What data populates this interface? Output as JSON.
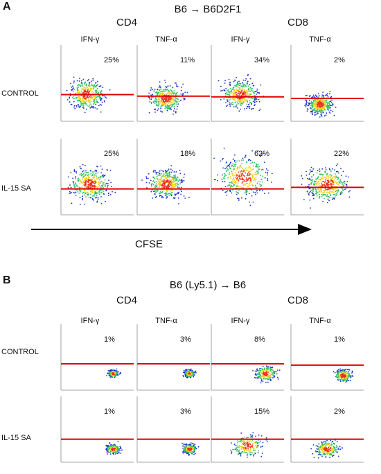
{
  "panels": [
    {
      "label": "A",
      "title": "B6 → B6D2F1",
      "groups": [
        "CD4",
        "CD8"
      ],
      "columns": [
        "IFN-γ",
        "TNF-α",
        "IFN-γ",
        "TNF-α"
      ],
      "rows": [
        {
          "label": "CONTROL",
          "values": [
            "25%",
            "11%",
            "34%",
            "2%"
          ]
        },
        {
          "label": "IL-15 SA",
          "values": [
            "25%",
            "18%",
            "62%",
            "22%"
          ]
        }
      ],
      "x_axis_label": "CFSE"
    },
    {
      "label": "B",
      "title": "B6 (Ly5.1) → B6",
      "groups": [
        "CD4",
        "CD8"
      ],
      "columns": [
        "IFN-γ",
        "TNF-α",
        "IFN-γ",
        "TNF-α"
      ],
      "rows": [
        {
          "label": "CONTROL",
          "values": [
            "1%",
            "3%",
            "8%",
            "1%"
          ]
        },
        {
          "label": "IL-15 SA",
          "values": [
            "1%",
            "3%",
            "15%",
            "2%"
          ]
        }
      ]
    }
  ]
}
